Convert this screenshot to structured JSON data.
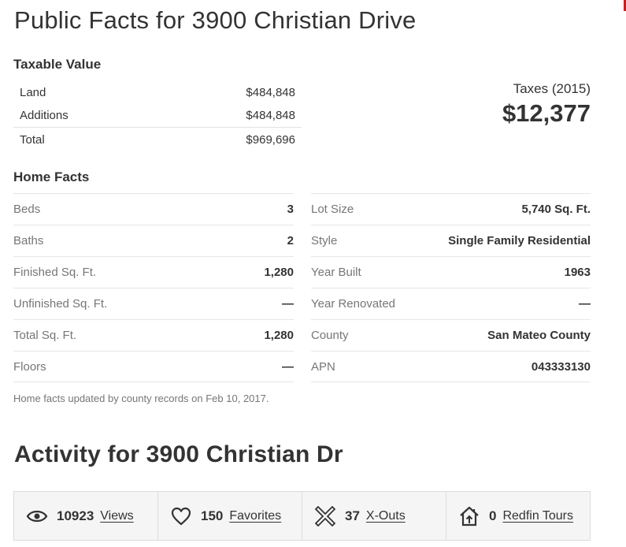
{
  "page_title": "Public Facts for 3900 Christian Drive",
  "taxable_value": {
    "heading": "Taxable Value",
    "rows": [
      {
        "label": "Land",
        "value": "$484,848"
      },
      {
        "label": "Additions",
        "value": "$484,848"
      },
      {
        "label": "Total",
        "value": "$969,696"
      }
    ]
  },
  "taxes": {
    "label": "Taxes (2015)",
    "amount": "$12,377"
  },
  "home_facts": {
    "heading": "Home Facts",
    "left": [
      {
        "label": "Beds",
        "value": "3"
      },
      {
        "label": "Baths",
        "value": "2"
      },
      {
        "label": "Finished Sq. Ft.",
        "value": "1,280"
      },
      {
        "label": "Unfinished Sq. Ft.",
        "value": "—"
      },
      {
        "label": "Total Sq. Ft.",
        "value": "1,280"
      },
      {
        "label": "Floors",
        "value": "—"
      }
    ],
    "right": [
      {
        "label": "Lot Size",
        "value": "5,740 Sq. Ft."
      },
      {
        "label": "Style",
        "value": "Single Family Residential"
      },
      {
        "label": "Year Built",
        "value": "1963"
      },
      {
        "label": "Year Renovated",
        "value": "—"
      },
      {
        "label": "County",
        "value": "San Mateo County"
      },
      {
        "label": "APN",
        "value": "043333130"
      }
    ],
    "updated_note": "Home facts updated by county records on Feb 10, 2017."
  },
  "activity": {
    "heading": "Activity for 3900 Christian Dr",
    "items": [
      {
        "icon": "eye-icon",
        "count": "10923",
        "label": "Views"
      },
      {
        "icon": "heart-icon",
        "count": "150",
        "label": "Favorites"
      },
      {
        "icon": "x-out-icon",
        "count": "37",
        "label": "X-Outs"
      },
      {
        "icon": "house-tour-icon",
        "count": "0",
        "label": "Redfin Tours"
      }
    ]
  },
  "colors": {
    "accent_red": "#c82021",
    "text": "#333333",
    "muted": "#767676",
    "activity_bg": "#f5f5f5"
  }
}
